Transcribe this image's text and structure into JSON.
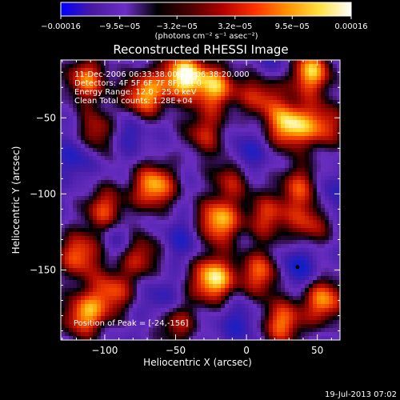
{
  "chart_data": {
    "type": "heatmap",
    "title": "Reconstructed RHESSI Image",
    "xlabel": "Heliocentric X (arcsec)",
    "ylabel": "Heliocentric Y (arcsec)",
    "xlim": [
      -131,
      66
    ],
    "ylim": [
      -196,
      -12
    ],
    "x_ticks": [
      -100,
      -50,
      0,
      50
    ],
    "x_tick_labels": [
      "−100",
      "−50",
      "0",
      "50"
    ],
    "y_ticks": [
      -50,
      -100,
      -150
    ],
    "y_tick_labels": [
      "−50",
      "−100",
      "−150"
    ],
    "colorbar": {
      "min": -0.00016,
      "max": 0.00016,
      "tick_values": [
        -0.00016,
        -9.5e-05,
        -3.2e-05,
        3.2e-05,
        9.5e-05,
        0.00016
      ],
      "tick_labels": [
        "−0.00016",
        "−9.5e−05",
        "−3.2e−05",
        "3.2e−05",
        "9.5e−05",
        "0.00016"
      ],
      "units_label": "(photons cm⁻² s⁻¹ asec⁻²)",
      "colormap": [
        "#0000ff",
        "#4a1aa0",
        "#6c2ec9",
        "#000000",
        "#4a0000",
        "#b00000",
        "#ff3000",
        "#ff9000",
        "#ffe040",
        "#ffffff"
      ]
    },
    "info_lines": [
      "11-Dec-2006 06:33:38.000 to 06:38:20.000",
      "Detectors: 4F 5F 6F 7F 8F, Att 0",
      "Energy Range: 12.0 - 25.0 keV",
      "Clean    Total counts: 1.28E+04"
    ],
    "peak_label": "Position of Peak = [-24,-156]",
    "peak": {
      "x": -24,
      "y": -156
    },
    "marker": {
      "x": 36,
      "y": -148
    },
    "hot_spots": [
      {
        "x": -45,
        "y": -22,
        "v": 1.0
      },
      {
        "x": -22,
        "y": -30,
        "v": 0.8
      },
      {
        "x": -72,
        "y": -35,
        "v": 0.85
      },
      {
        "x": -113,
        "y": -25,
        "v": 0.75
      },
      {
        "x": -105,
        "y": -60,
        "v": 0.6
      },
      {
        "x": -30,
        "y": -60,
        "v": 0.55
      },
      {
        "x": 10,
        "y": -35,
        "v": 0.6
      },
      {
        "x": 45,
        "y": -20,
        "v": 0.9
      },
      {
        "x": 30,
        "y": -55,
        "v": 0.95
      },
      {
        "x": 55,
        "y": -55,
        "v": 0.65
      },
      {
        "x": -65,
        "y": -95,
        "v": 0.9
      },
      {
        "x": -10,
        "y": -88,
        "v": 0.55
      },
      {
        "x": 38,
        "y": -95,
        "v": 0.6
      },
      {
        "x": -100,
        "y": -110,
        "v": 0.65
      },
      {
        "x": -20,
        "y": -118,
        "v": 0.9
      },
      {
        "x": 15,
        "y": -115,
        "v": 0.6
      },
      {
        "x": 45,
        "y": -120,
        "v": 0.55
      },
      {
        "x": -118,
        "y": -140,
        "v": 0.75
      },
      {
        "x": -75,
        "y": -140,
        "v": 0.6
      },
      {
        "x": -24,
        "y": -156,
        "v": 1.0
      },
      {
        "x": 10,
        "y": -152,
        "v": 0.7
      },
      {
        "x": -95,
        "y": -165,
        "v": 0.65
      },
      {
        "x": 55,
        "y": -170,
        "v": 0.8
      },
      {
        "x": -115,
        "y": -180,
        "v": 0.8
      },
      {
        "x": 25,
        "y": -185,
        "v": 0.75
      },
      {
        "x": -50,
        "y": -185,
        "v": 0.55
      }
    ],
    "cold_spots": [
      {
        "x": -120,
        "y": -75,
        "v": 0.7
      },
      {
        "x": 0,
        "y": -75,
        "v": 0.8
      },
      {
        "x": -85,
        "y": -60,
        "v": 0.6
      },
      {
        "x": 60,
        "y": -100,
        "v": 0.6
      },
      {
        "x": -45,
        "y": -130,
        "v": 0.6
      },
      {
        "x": 36,
        "y": -148,
        "v": 0.9
      },
      {
        "x": -60,
        "y": -170,
        "v": 0.6
      },
      {
        "x": -5,
        "y": -185,
        "v": 0.6
      },
      {
        "x": 20,
        "y": -15,
        "v": 0.45
      },
      {
        "x": -90,
        "y": -130,
        "v": 0.5
      }
    ]
  },
  "footer": {
    "timestamp": "19-Jul-2013 07:02"
  }
}
